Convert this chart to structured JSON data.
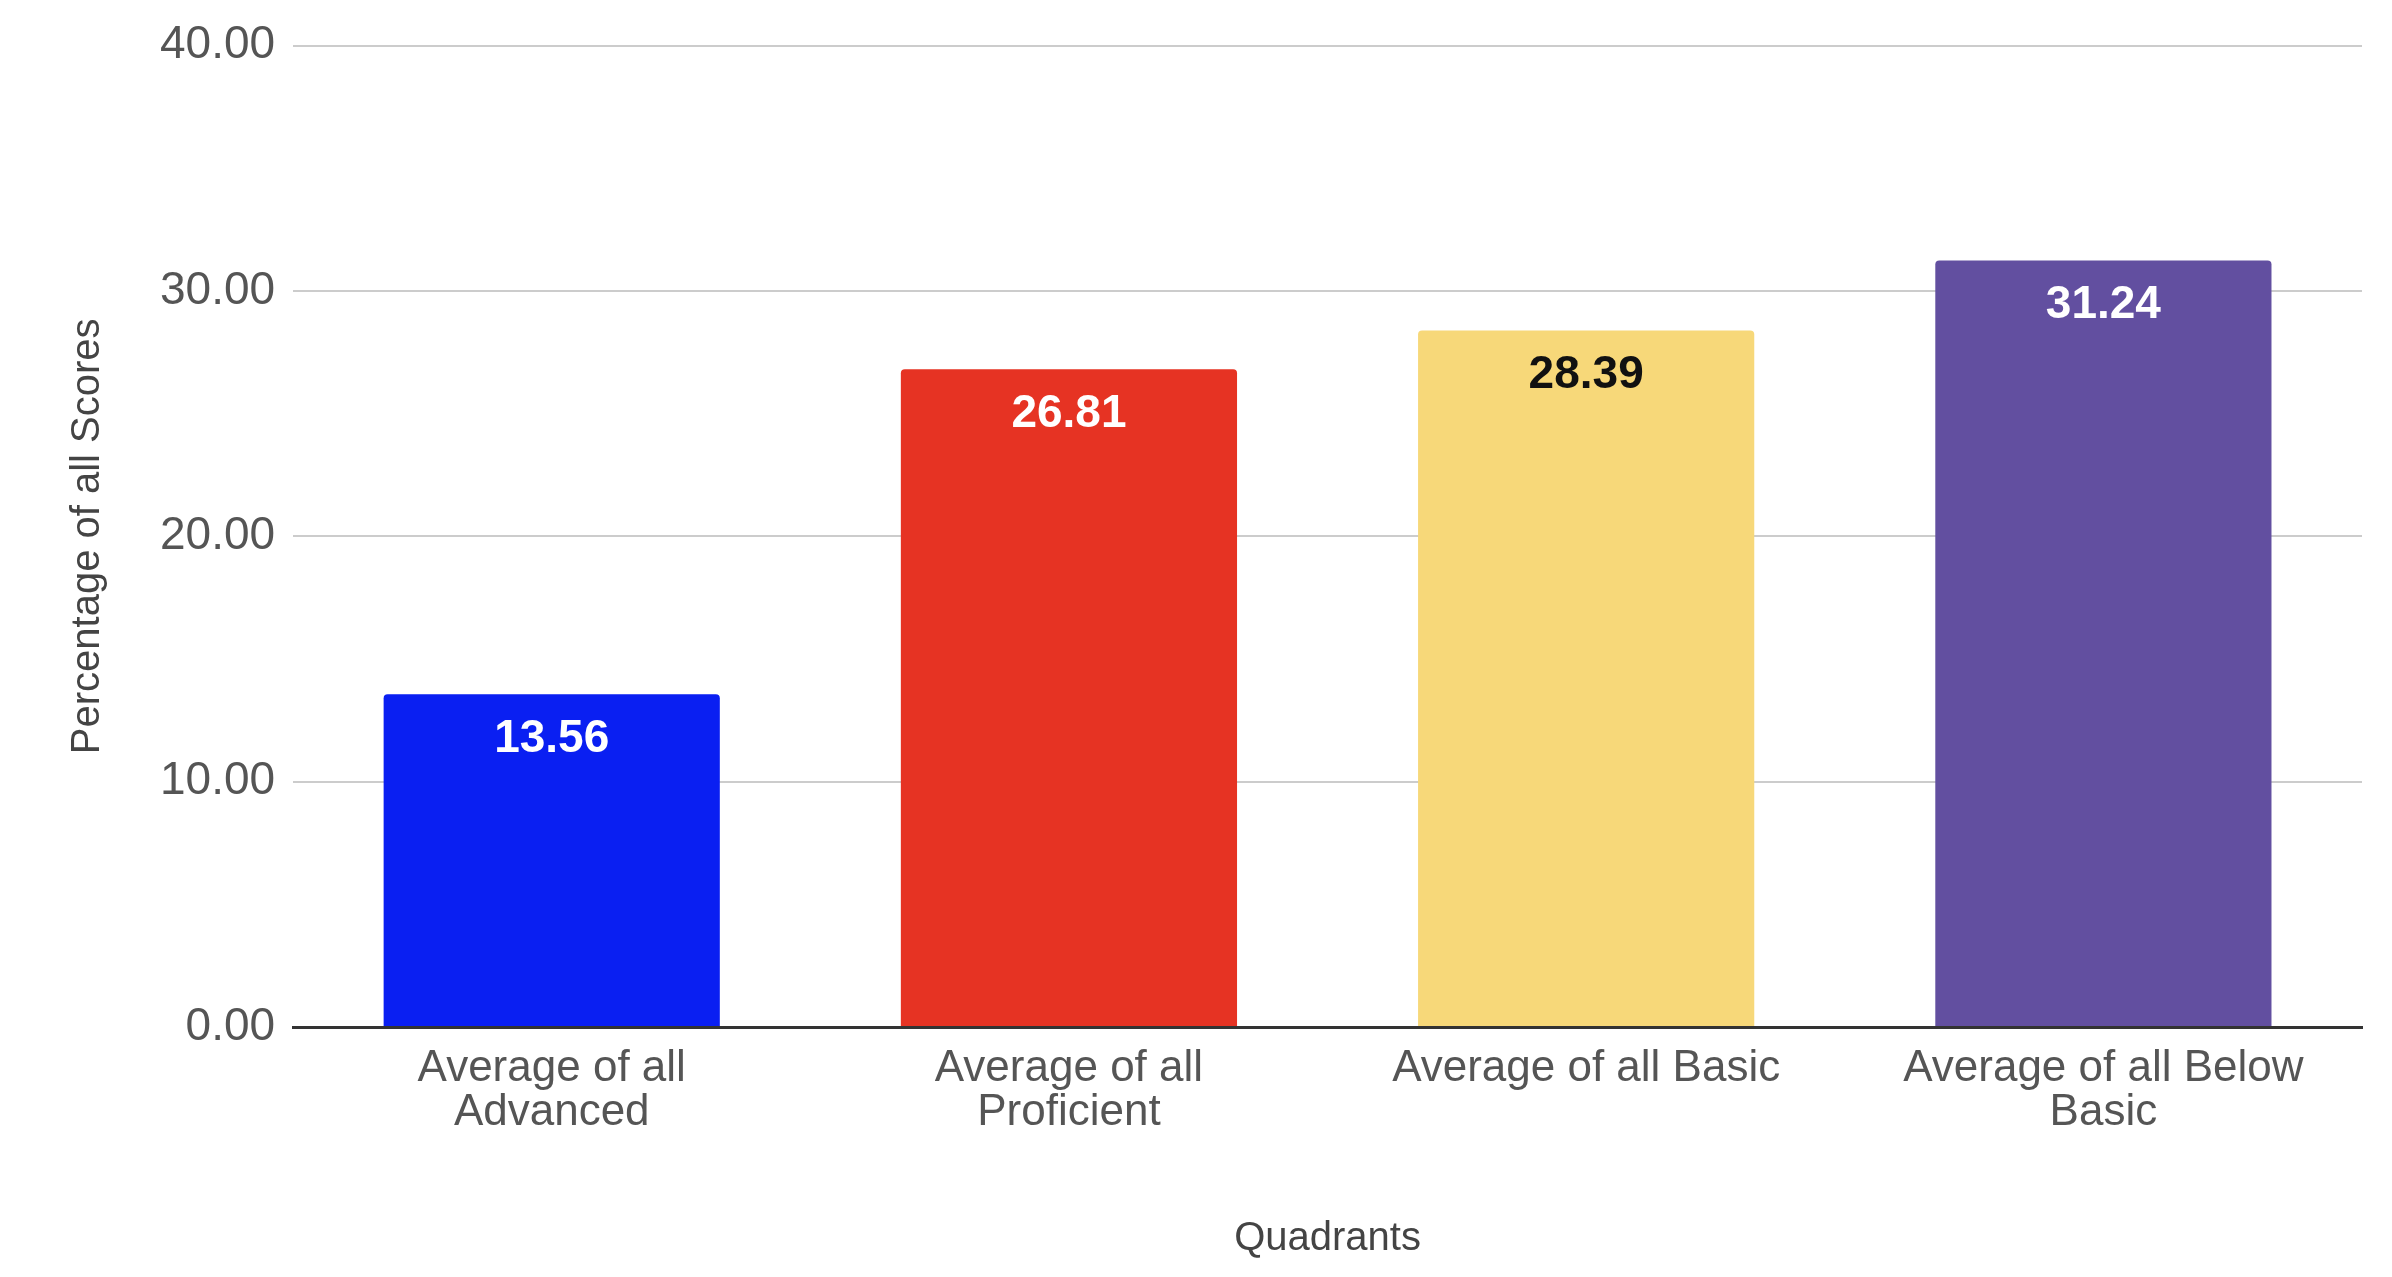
{
  "chart_data": {
    "type": "bar",
    "xlabel": "Quadrants",
    "ylabel": "Percentage of all Scores",
    "categories": [
      "Average of all Advanced",
      "Average of all Proficient",
      "Average of all Basic",
      "Average of all Below Basic"
    ],
    "values": [
      13.56,
      26.81,
      28.39,
      31.24
    ],
    "colors": [
      "#0a1ff2",
      "#e63323",
      "#f7d879",
      "#624fa0"
    ],
    "ylim": [
      0,
      40
    ],
    "yticks": [
      {
        "value": 0,
        "label": "0.00"
      },
      {
        "value": 10,
        "label": "10.00"
      },
      {
        "value": 20,
        "label": "20.00"
      },
      {
        "value": 30,
        "label": "30.00"
      },
      {
        "value": 40,
        "label": "40.00"
      }
    ],
    "grid": "y",
    "legend": false,
    "data_labels": true
  }
}
